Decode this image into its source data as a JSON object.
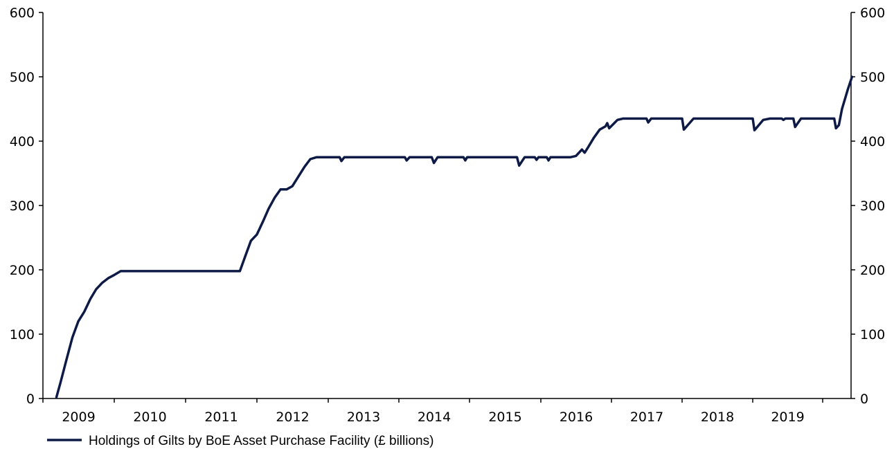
{
  "chart_data": {
    "type": "line",
    "title": "",
    "xlabel": "",
    "ylabel": "",
    "x_axis": {
      "type": "date",
      "range": [
        "2009-01-01",
        "2020-06-30"
      ],
      "tick_labels": [
        "2009",
        "2010",
        "2011",
        "2012",
        "2013",
        "2014",
        "2015",
        "2016",
        "2017",
        "2018",
        "2019"
      ]
    },
    "y_axis_left": {
      "range": [
        0,
        600
      ],
      "ticks": [
        0,
        100,
        200,
        300,
        400,
        500,
        600
      ]
    },
    "y_axis_right": {
      "range": [
        0,
        600
      ],
      "ticks": [
        0,
        100,
        200,
        300,
        400,
        500,
        600
      ]
    },
    "grid": false,
    "legend_position": "bottom-left",
    "series": [
      {
        "name": "Holdings of Gilts by BoE Asset Purchase Facility (£ billions)",
        "color": "#0d1a45",
        "points": [
          [
            "2009-03-11",
            2
          ],
          [
            "2009-04-01",
            25
          ],
          [
            "2009-05-01",
            60
          ],
          [
            "2009-06-01",
            95
          ],
          [
            "2009-07-01",
            120
          ],
          [
            "2009-08-01",
            135
          ],
          [
            "2009-09-01",
            155
          ],
          [
            "2009-10-01",
            170
          ],
          [
            "2009-11-01",
            180
          ],
          [
            "2009-12-01",
            187
          ],
          [
            "2010-01-01",
            192
          ],
          [
            "2010-02-03",
            198
          ],
          [
            "2010-06-01",
            198
          ],
          [
            "2011-01-01",
            198
          ],
          [
            "2011-06-01",
            198
          ],
          [
            "2011-10-06",
            198
          ],
          [
            "2011-11-01",
            220
          ],
          [
            "2011-12-01",
            245
          ],
          [
            "2012-01-01",
            255
          ],
          [
            "2012-02-01",
            275
          ],
          [
            "2012-03-01",
            295
          ],
          [
            "2012-04-01",
            312
          ],
          [
            "2012-05-01",
            325
          ],
          [
            "2012-06-01",
            325
          ],
          [
            "2012-07-01",
            330
          ],
          [
            "2012-08-01",
            345
          ],
          [
            "2012-09-01",
            360
          ],
          [
            "2012-10-01",
            372
          ],
          [
            "2012-11-01",
            375
          ],
          [
            "2013-03-01",
            375
          ],
          [
            "2013-03-10",
            369
          ],
          [
            "2013-03-25",
            375
          ],
          [
            "2013-09-01",
            375
          ],
          [
            "2014-02-01",
            375
          ],
          [
            "2014-02-10",
            370
          ],
          [
            "2014-02-25",
            375
          ],
          [
            "2014-06-20",
            375
          ],
          [
            "2014-07-01",
            366
          ],
          [
            "2014-07-20",
            375
          ],
          [
            "2014-12-01",
            375
          ],
          [
            "2014-12-10",
            370
          ],
          [
            "2014-12-20",
            375
          ],
          [
            "2015-06-01",
            375
          ],
          [
            "2015-09-01",
            375
          ],
          [
            "2015-09-12",
            362
          ],
          [
            "2015-10-10",
            375
          ],
          [
            "2015-12-01",
            375
          ],
          [
            "2015-12-10",
            371
          ],
          [
            "2015-12-20",
            375
          ],
          [
            "2016-02-01",
            375
          ],
          [
            "2016-02-10",
            370
          ],
          [
            "2016-02-20",
            375
          ],
          [
            "2016-06-01",
            375
          ],
          [
            "2016-07-01",
            377
          ],
          [
            "2016-08-01",
            387
          ],
          [
            "2016-08-15",
            382
          ],
          [
            "2016-09-01",
            390
          ],
          [
            "2016-10-01",
            405
          ],
          [
            "2016-11-01",
            418
          ],
          [
            "2016-12-01",
            423
          ],
          [
            "2016-12-10",
            428
          ],
          [
            "2016-12-20",
            420
          ],
          [
            "2017-02-01",
            433
          ],
          [
            "2017-03-01",
            435
          ],
          [
            "2017-07-01",
            435
          ],
          [
            "2017-07-10",
            429
          ],
          [
            "2017-07-25",
            435
          ],
          [
            "2017-12-01",
            435
          ],
          [
            "2018-01-01",
            435
          ],
          [
            "2018-01-10",
            418
          ],
          [
            "2018-03-01",
            435
          ],
          [
            "2018-05-01",
            435
          ],
          [
            "2018-06-01",
            435
          ],
          [
            "2018-08-01",
            435
          ],
          [
            "2018-11-01",
            435
          ],
          [
            "2019-01-01",
            435
          ],
          [
            "2019-01-10",
            417
          ],
          [
            "2019-02-25",
            433
          ],
          [
            "2019-04-01",
            435
          ],
          [
            "2019-06-01",
            435
          ],
          [
            "2019-06-10",
            433
          ],
          [
            "2019-06-20",
            435
          ],
          [
            "2019-08-01",
            435
          ],
          [
            "2019-08-10",
            422
          ],
          [
            "2019-09-10",
            435
          ],
          [
            "2019-12-01",
            435
          ],
          [
            "2020-02-01",
            435
          ],
          [
            "2020-03-01",
            435
          ],
          [
            "2020-03-10",
            420
          ],
          [
            "2020-03-25",
            425
          ],
          [
            "2020-04-10",
            450
          ],
          [
            "2020-05-10",
            480
          ],
          [
            "2020-06-01",
            500
          ]
        ]
      }
    ]
  }
}
